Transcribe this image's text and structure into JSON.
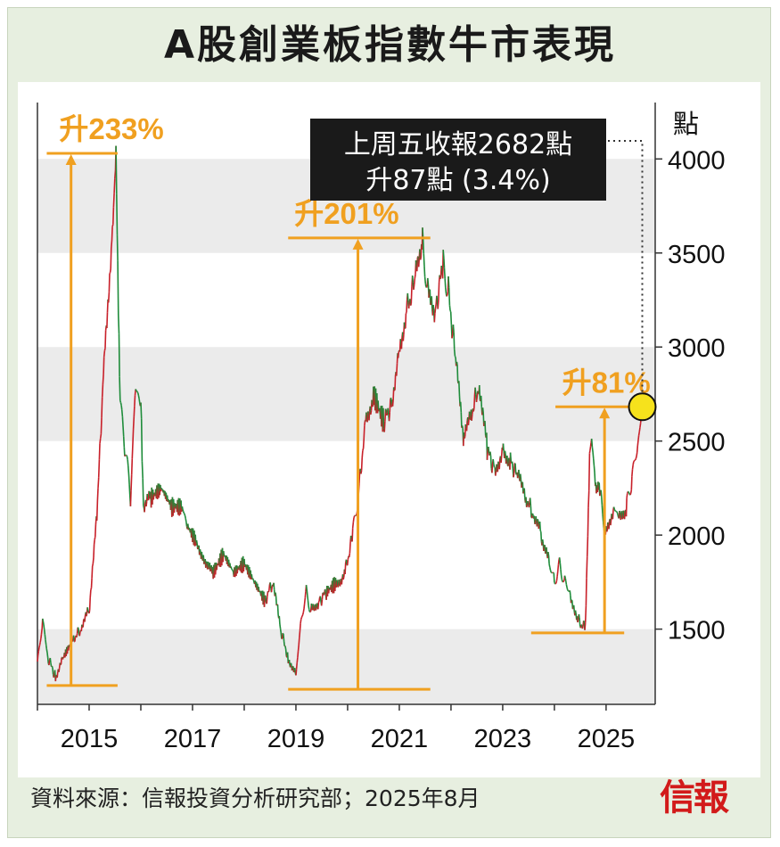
{
  "title": "A股創業板指數牛市表現",
  "unit_label": "點",
  "callout": {
    "line1": "上周五收報2682點",
    "line2": "升87點 (3.4%)"
  },
  "annotations": {
    "rise1": "升233%",
    "rise2": "升201%",
    "rise3": "升81%"
  },
  "source": "資料來源：信報投資分析研究部；2025年8月",
  "logo": "信報",
  "colors": {
    "accent": "#f0a020",
    "rise": "#c8202a",
    "fall": "#1e8c3a",
    "band": "#ebebeb",
    "marker": "#f6e21c",
    "callout_bg": "#1a1a1a"
  },
  "chart_data": {
    "type": "line",
    "title": "A股創業板指數牛市表現",
    "ylabel": "點",
    "ylim": [
      1100,
      4300
    ],
    "xlim": [
      2014.0,
      2025.95
    ],
    "yticks": [
      "1500",
      "2000",
      "2500",
      "3000",
      "3500",
      "4000"
    ],
    "xticks": [
      "2015",
      "2017",
      "2019",
      "2021",
      "2023",
      "2025"
    ],
    "grid": "alternating horizontal bands",
    "series": [
      {
        "x": [
          2014.0,
          2014.1,
          2014.2,
          2014.35,
          2014.5,
          2014.7,
          2014.85,
          2015.0,
          2015.15,
          2015.3,
          2015.45,
          2015.52,
          2015.6,
          2015.7,
          2015.8,
          2015.9,
          2016.0,
          2016.05,
          2016.2,
          2016.4,
          2016.6,
          2016.8,
          2016.9,
          2017.1,
          2017.4,
          2017.6,
          2017.8,
          2018.0,
          2018.2,
          2018.4,
          2018.55,
          2018.7,
          2018.85,
          2019.0,
          2019.1,
          2019.2,
          2019.3,
          2019.45,
          2019.6,
          2019.8,
          2019.95,
          2020.1,
          2020.2,
          2020.35,
          2020.5,
          2020.7,
          2020.85,
          2021.0,
          2021.15,
          2021.3,
          2021.45,
          2021.55,
          2021.7,
          2021.85,
          2021.95,
          2022.1,
          2022.25,
          2022.4,
          2022.55,
          2022.7,
          2022.85,
          2023.0,
          2023.15,
          2023.3,
          2023.45,
          2023.6,
          2023.75,
          2023.9,
          2024.0,
          2024.1,
          2024.2,
          2024.3,
          2024.45,
          2024.6,
          2024.68,
          2024.72,
          2024.78,
          2024.9,
          2025.0,
          2025.15,
          2025.25,
          2025.4,
          2025.5,
          2025.6,
          2025.7
        ],
        "y": [
          1300,
          1550,
          1350,
          1250,
          1350,
          1450,
          1500,
          1600,
          2100,
          3000,
          3600,
          4030,
          2700,
          2450,
          2200,
          2800,
          2700,
          2150,
          2200,
          2250,
          2150,
          2150,
          2050,
          1950,
          1800,
          1900,
          1800,
          1850,
          1750,
          1650,
          1750,
          1500,
          1350,
          1250,
          1550,
          1700,
          1600,
          1650,
          1700,
          1750,
          1800,
          2000,
          2200,
          2600,
          2750,
          2600,
          2700,
          3000,
          3200,
          3350,
          3570,
          3300,
          3200,
          3450,
          3300,
          2900,
          2500,
          2650,
          2800,
          2450,
          2350,
          2450,
          2400,
          2300,
          2200,
          2100,
          2000,
          1850,
          1750,
          1850,
          1750,
          1700,
          1550,
          1500,
          2400,
          2500,
          2300,
          2200,
          2000,
          2150,
          2100,
          2150,
          2300,
          2450,
          2682
        ]
      }
    ],
    "points": [
      {
        "label": "上周五收報2682點",
        "x": 2025.7,
        "y": 2682
      }
    ],
    "rises": [
      {
        "label": "升233%",
        "from": {
          "x": 2014.4,
          "y": 1200
        },
        "to": {
          "x": 2015.48,
          "y": 4030
        }
      },
      {
        "label": "升201%",
        "from": {
          "x": 2018.9,
          "y": 1180
        },
        "to": {
          "x": 2021.55,
          "y": 3580
        }
      },
      {
        "label": "升81%",
        "from": {
          "x": 2024.1,
          "y": 1480
        },
        "to": {
          "x": 2025.7,
          "y": 2682
        }
      }
    ]
  }
}
